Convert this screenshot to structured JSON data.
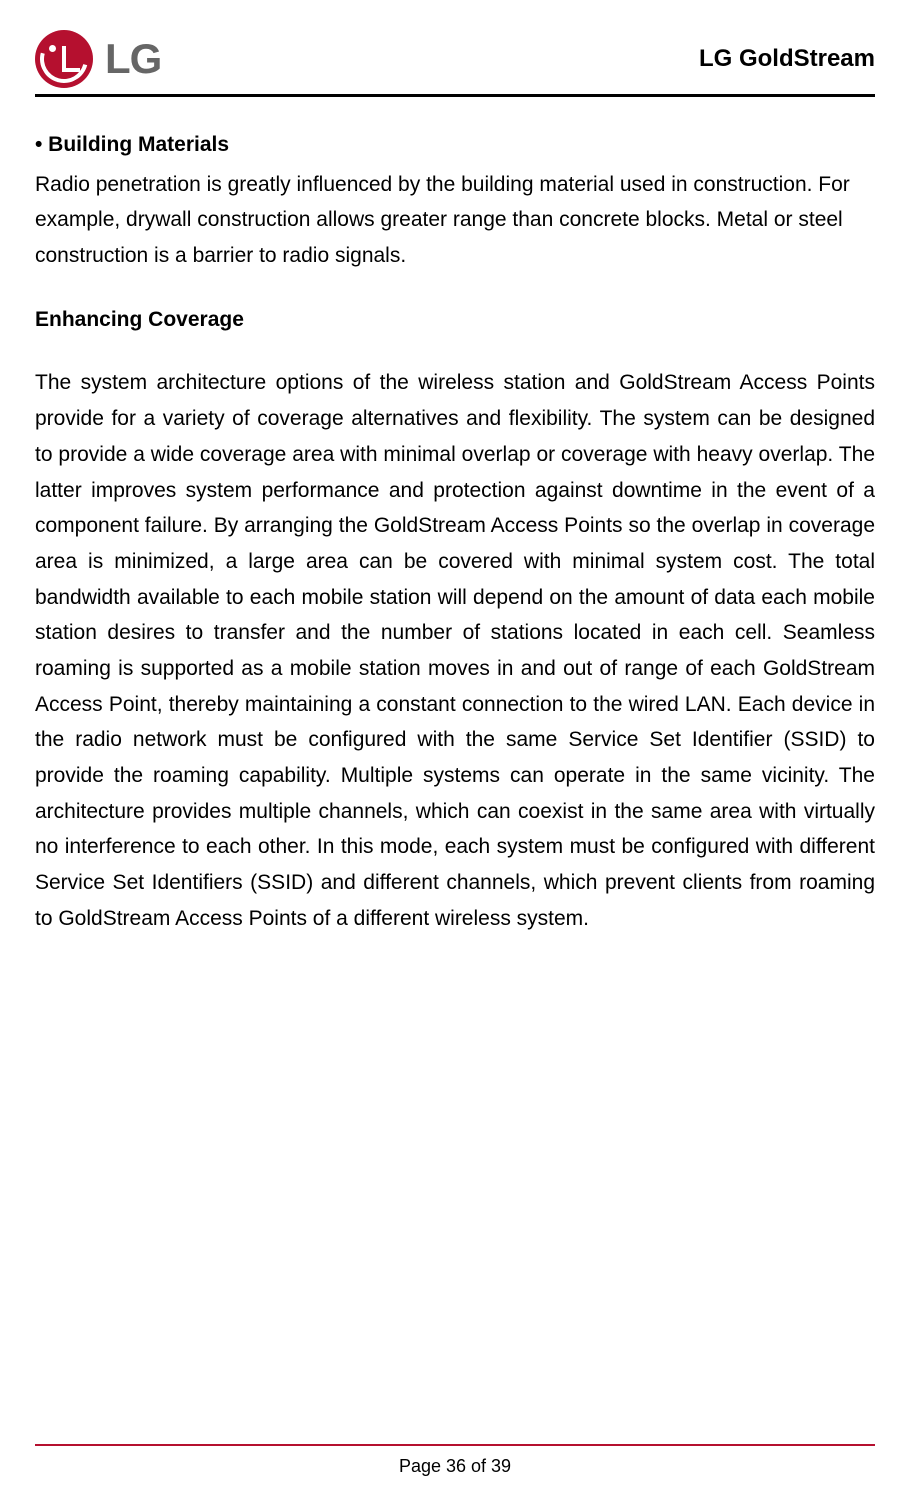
{
  "header": {
    "logo_text": "LG",
    "title": "LG GoldStream"
  },
  "colors": {
    "logo_red": "#b5102f",
    "logo_gray": "#666666",
    "text": "#000000",
    "footer_border": "#b5102f",
    "background": "#ffffff"
  },
  "typography": {
    "body_fontsize": 21,
    "header_title_fontsize": 24,
    "logo_text_fontsize": 42,
    "footer_fontsize": 18,
    "line_height": 1.7
  },
  "content": {
    "section1_heading": "• Building Materials",
    "section1_body": "Radio penetration is greatly influenced by the building material used in construction. For example, drywall construction allows greater range than concrete blocks. Metal or steel construction is a barrier to radio signals.",
    "section2_title": "Enhancing Coverage",
    "section2_body": "The system architecture options of the wireless station and GoldStream Access Points provide for a variety of coverage alternatives and flexibility. The system can be designed to provide a wide coverage area with minimal overlap or coverage with heavy overlap. The latter improves system performance and protection against downtime in the event of a component failure. By arranging the GoldStream Access Points so the overlap in coverage area is minimized, a large area can be covered with minimal system cost. The total bandwidth available to each mobile station will depend on the amount of data each mobile station desires to transfer and the number of stations located in each cell. Seamless roaming is supported as a mobile station moves in and out of range of each GoldStream Access Point, thereby maintaining a constant connection to the wired LAN. Each device in the radio network must be configured with the same Service Set Identifier (SSID) to provide the roaming capability. Multiple systems can operate in the same vicinity. The architecture provides multiple channels, which can coexist in the same area with virtually no interference to each other. In this mode, each system must be configured with different Service Set Identifiers (SSID) and different channels, which prevent clients from roaming to GoldStream Access Points of a different wireless system."
  },
  "footer": {
    "page_text": "Page 36 of 39"
  }
}
